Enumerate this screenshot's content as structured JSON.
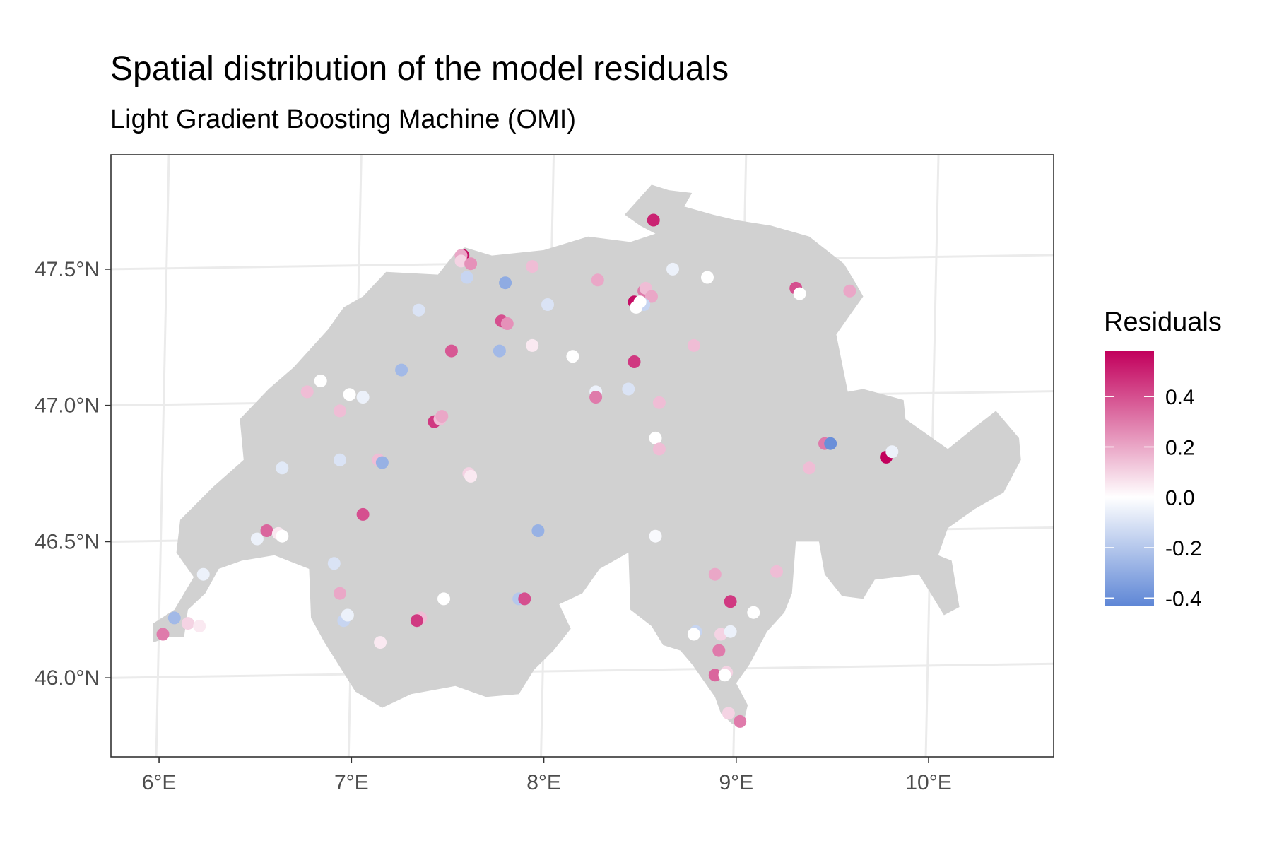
{
  "header": {
    "title": "Spatial distribution of the model residuals",
    "subtitle": "Light Gradient Boosting Machine (OMI)"
  },
  "chart_data": {
    "type": "scatter",
    "title": "Spatial distribution of the model residuals",
    "subtitle": "Light Gradient Boosting Machine (OMI)",
    "xlabel": "",
    "ylabel": "",
    "xlim": [
      5.75,
      10.65
    ],
    "ylim": [
      45.71,
      47.92
    ],
    "x_ticks": [
      6,
      7,
      8,
      9,
      10
    ],
    "y_ticks": [
      46.0,
      46.5,
      47.0,
      47.5
    ],
    "x_tick_labels": [
      "6°E",
      "7°E",
      "8°E",
      "9°E",
      "10°E"
    ],
    "y_tick_labels": [
      "46.0°N",
      "46.5°N",
      "47.0°N",
      "47.5°N"
    ],
    "grid": true,
    "legend": {
      "title": "Residuals",
      "placement": "right",
      "range": [
        -0.43,
        0.58
      ],
      "ticks": [
        0.4,
        0.2,
        0.0,
        -0.2,
        -0.4
      ],
      "tick_labels": [
        "0.4",
        "0.2",
        "0.0",
        "-0.2",
        "-0.4"
      ],
      "low_color": "#5f87d6",
      "mid_color": "#ffffff",
      "high_color": "#c2005c"
    },
    "land_color": "#d1d1d1",
    "points": [
      {
        "lon": 8.57,
        "lat": 47.68,
        "r": 0.5
      },
      {
        "lon": 7.58,
        "lat": 47.55,
        "r": 0.55
      },
      {
        "lon": 7.57,
        "lat": 47.55,
        "r": 0.2
      },
      {
        "lon": 7.57,
        "lat": 47.53,
        "r": 0.1
      },
      {
        "lon": 7.62,
        "lat": 47.52,
        "r": 0.25
      },
      {
        "lon": 7.6,
        "lat": 47.47,
        "r": -0.15
      },
      {
        "lon": 7.8,
        "lat": 47.45,
        "r": -0.3
      },
      {
        "lon": 7.94,
        "lat": 47.51,
        "r": 0.15
      },
      {
        "lon": 8.67,
        "lat": 47.5,
        "r": -0.05
      },
      {
        "lon": 8.85,
        "lat": 47.47,
        "r": 0.0
      },
      {
        "lon": 8.28,
        "lat": 47.46,
        "r": 0.2
      },
      {
        "lon": 8.52,
        "lat": 47.42,
        "r": 0.3
      },
      {
        "lon": 8.53,
        "lat": 47.43,
        "r": 0.15
      },
      {
        "lon": 8.56,
        "lat": 47.4,
        "r": 0.2
      },
      {
        "lon": 8.47,
        "lat": 47.38,
        "r": 0.55
      },
      {
        "lon": 8.52,
        "lat": 47.37,
        "r": -0.15
      },
      {
        "lon": 8.5,
        "lat": 47.38,
        "r": 0.0
      },
      {
        "lon": 8.48,
        "lat": 47.36,
        "r": 0.0
      },
      {
        "lon": 7.35,
        "lat": 47.35,
        "r": -0.1
      },
      {
        "lon": 8.02,
        "lat": 47.37,
        "r": -0.1
      },
      {
        "lon": 9.31,
        "lat": 47.43,
        "r": 0.4
      },
      {
        "lon": 9.33,
        "lat": 47.41,
        "r": 0.0
      },
      {
        "lon": 9.59,
        "lat": 47.42,
        "r": 0.2
      },
      {
        "lon": 7.78,
        "lat": 47.31,
        "r": 0.4
      },
      {
        "lon": 7.81,
        "lat": 47.3,
        "r": 0.25
      },
      {
        "lon": 7.94,
        "lat": 47.22,
        "r": 0.05
      },
      {
        "lon": 8.78,
        "lat": 47.22,
        "r": 0.15
      },
      {
        "lon": 7.52,
        "lat": 47.2,
        "r": 0.38
      },
      {
        "lon": 7.77,
        "lat": 47.2,
        "r": -0.25
      },
      {
        "lon": 8.15,
        "lat": 47.18,
        "r": 0.0
      },
      {
        "lon": 8.47,
        "lat": 47.16,
        "r": 0.45
      },
      {
        "lon": 7.26,
        "lat": 47.13,
        "r": -0.25
      },
      {
        "lon": 6.84,
        "lat": 47.09,
        "r": 0.0
      },
      {
        "lon": 6.77,
        "lat": 47.05,
        "r": 0.15
      },
      {
        "lon": 6.99,
        "lat": 47.04,
        "r": 0.0
      },
      {
        "lon": 7.06,
        "lat": 47.03,
        "r": -0.05
      },
      {
        "lon": 8.27,
        "lat": 47.05,
        "r": -0.05
      },
      {
        "lon": 8.44,
        "lat": 47.06,
        "r": -0.1
      },
      {
        "lon": 8.27,
        "lat": 47.03,
        "r": 0.3
      },
      {
        "lon": 8.6,
        "lat": 47.01,
        "r": 0.15
      },
      {
        "lon": 6.94,
        "lat": 46.98,
        "r": 0.15
      },
      {
        "lon": 7.43,
        "lat": 46.94,
        "r": 0.45
      },
      {
        "lon": 7.46,
        "lat": 46.95,
        "r": 0.15
      },
      {
        "lon": 7.47,
        "lat": 46.96,
        "r": 0.2
      },
      {
        "lon": 8.58,
        "lat": 46.88,
        "r": 0.0
      },
      {
        "lon": 8.6,
        "lat": 46.84,
        "r": 0.15
      },
      {
        "lon": 9.46,
        "lat": 46.86,
        "r": 0.3
      },
      {
        "lon": 9.49,
        "lat": 46.86,
        "r": -0.4
      },
      {
        "lon": 9.78,
        "lat": 46.81,
        "r": 0.58
      },
      {
        "lon": 9.81,
        "lat": 46.83,
        "r": -0.05
      },
      {
        "lon": 6.94,
        "lat": 46.8,
        "r": -0.1
      },
      {
        "lon": 7.14,
        "lat": 46.8,
        "r": 0.15
      },
      {
        "lon": 7.16,
        "lat": 46.79,
        "r": -0.28
      },
      {
        "lon": 6.64,
        "lat": 46.77,
        "r": -0.08
      },
      {
        "lon": 9.38,
        "lat": 46.77,
        "r": 0.15
      },
      {
        "lon": 7.61,
        "lat": 46.75,
        "r": 0.1
      },
      {
        "lon": 7.62,
        "lat": 46.74,
        "r": 0.05
      },
      {
        "lon": 7.06,
        "lat": 46.6,
        "r": 0.4
      },
      {
        "lon": 6.56,
        "lat": 46.54,
        "r": 0.35
      },
      {
        "lon": 6.62,
        "lat": 46.53,
        "r": 0.05
      },
      {
        "lon": 6.64,
        "lat": 46.52,
        "r": 0.0
      },
      {
        "lon": 6.51,
        "lat": 46.51,
        "r": -0.05
      },
      {
        "lon": 7.97,
        "lat": 46.54,
        "r": -0.28
      },
      {
        "lon": 8.58,
        "lat": 46.52,
        "r": -0.02
      },
      {
        "lon": 6.91,
        "lat": 46.42,
        "r": -0.1
      },
      {
        "lon": 6.23,
        "lat": 46.38,
        "r": -0.05
      },
      {
        "lon": 8.89,
        "lat": 46.38,
        "r": 0.2
      },
      {
        "lon": 9.21,
        "lat": 46.39,
        "r": 0.15
      },
      {
        "lon": 6.94,
        "lat": 46.31,
        "r": 0.2
      },
      {
        "lon": 7.48,
        "lat": 46.29,
        "r": 0.0
      },
      {
        "lon": 7.87,
        "lat": 46.29,
        "r": -0.2
      },
      {
        "lon": 7.9,
        "lat": 46.29,
        "r": 0.4
      },
      {
        "lon": 8.97,
        "lat": 46.28,
        "r": 0.45
      },
      {
        "lon": 9.09,
        "lat": 46.24,
        "r": 0.0
      },
      {
        "lon": 6.08,
        "lat": 46.22,
        "r": -0.25
      },
      {
        "lon": 6.96,
        "lat": 46.21,
        "r": -0.15
      },
      {
        "lon": 6.98,
        "lat": 46.23,
        "r": -0.05
      },
      {
        "lon": 7.36,
        "lat": 46.22,
        "r": 0.15
      },
      {
        "lon": 7.34,
        "lat": 46.21,
        "r": 0.45
      },
      {
        "lon": 6.15,
        "lat": 46.2,
        "r": 0.1
      },
      {
        "lon": 6.21,
        "lat": 46.19,
        "r": 0.05
      },
      {
        "lon": 8.79,
        "lat": 46.17,
        "r": -0.15
      },
      {
        "lon": 8.78,
        "lat": 46.16,
        "r": 0.0
      },
      {
        "lon": 8.92,
        "lat": 46.16,
        "r": 0.1
      },
      {
        "lon": 8.97,
        "lat": 46.17,
        "r": -0.05
      },
      {
        "lon": 6.02,
        "lat": 46.16,
        "r": 0.3
      },
      {
        "lon": 7.15,
        "lat": 46.13,
        "r": 0.05
      },
      {
        "lon": 8.91,
        "lat": 46.1,
        "r": 0.3
      },
      {
        "lon": 8.89,
        "lat": 46.01,
        "r": 0.35
      },
      {
        "lon": 8.95,
        "lat": 46.02,
        "r": 0.1
      },
      {
        "lon": 8.94,
        "lat": 46.01,
        "r": 0.0
      },
      {
        "lon": 8.96,
        "lat": 45.87,
        "r": 0.1
      },
      {
        "lon": 9.02,
        "lat": 45.84,
        "r": 0.3
      }
    ]
  }
}
